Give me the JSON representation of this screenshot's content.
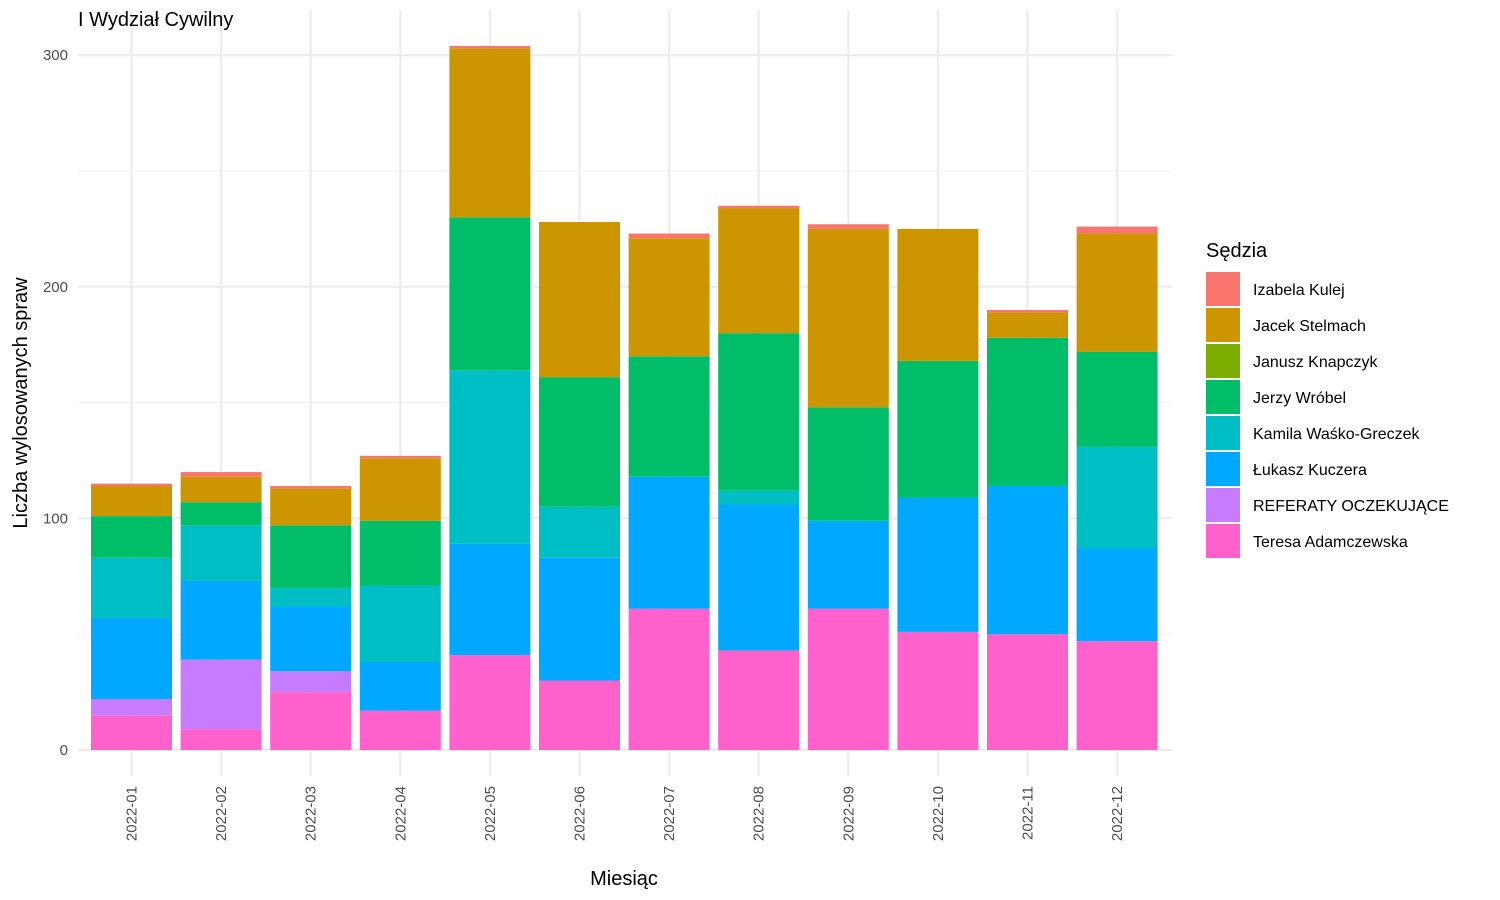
{
  "chart_data": {
    "type": "bar",
    "stacked": true,
    "title": "I Wydział Cywilny",
    "xlabel": "Miesiąc",
    "ylabel": "Liczba wylosowanych spraw",
    "ylim": [
      0,
      315
    ],
    "yticks": [
      0,
      100,
      200,
      300
    ],
    "grid": true,
    "legend_title": "Sędzia",
    "legend_position": "right",
    "categories": [
      "2022-01",
      "2022-02",
      "2022-03",
      "2022-04",
      "2022-05",
      "2022-06",
      "2022-07",
      "2022-08",
      "2022-09",
      "2022-10",
      "2022-11",
      "2022-12"
    ],
    "stack_order_bottom_to_top": [
      "Teresa Adamczewska",
      "REFERATY OCZEKUJĄCE",
      "Łukasz Kuczera",
      "Kamila Waśko-Greczek",
      "Jerzy Wróbel",
      "Janusz Knapczyk",
      "Jacek Stelmach",
      "Izabela Kulej"
    ],
    "series": [
      {
        "name": "Izabela Kulej",
        "color": "#F8766D",
        "values": [
          1,
          2,
          1,
          1,
          1,
          0,
          2,
          1,
          2,
          0,
          1,
          3
        ]
      },
      {
        "name": "Jacek Stelmach",
        "color": "#CD9600",
        "values": [
          13,
          11,
          16,
          27,
          73,
          67,
          51,
          54,
          77,
          57,
          11,
          51
        ]
      },
      {
        "name": "Janusz Knapczyk",
        "color": "#7CAE00",
        "values": [
          0,
          0,
          0,
          0,
          0,
          0,
          0,
          0,
          0,
          0,
          0,
          0
        ]
      },
      {
        "name": "Jerzy Wróbel",
        "color": "#00BE67",
        "values": [
          18,
          10,
          27,
          28,
          66,
          56,
          52,
          68,
          49,
          59,
          64,
          41
        ]
      },
      {
        "name": "Kamila Waśko-Greczek",
        "color": "#00BFC4",
        "values": [
          26,
          24,
          8,
          33,
          75,
          22,
          0,
          6,
          0,
          0,
          0,
          44
        ]
      },
      {
        "name": "Łukasz Kuczera",
        "color": "#00A9FF",
        "values": [
          35,
          34,
          28,
          21,
          48,
          53,
          57,
          63,
          38,
          58,
          64,
          40
        ]
      },
      {
        "name": "REFERATY OCZEKUJĄCE",
        "color": "#C77CFF",
        "values": [
          7,
          30,
          9,
          0,
          0,
          0,
          0,
          0,
          0,
          0,
          0,
          0
        ]
      },
      {
        "name": "Teresa Adamczewska",
        "color": "#FF61CC",
        "values": [
          15,
          9,
          25,
          17,
          41,
          30,
          61,
          43,
          61,
          51,
          50,
          47
        ]
      }
    ]
  }
}
